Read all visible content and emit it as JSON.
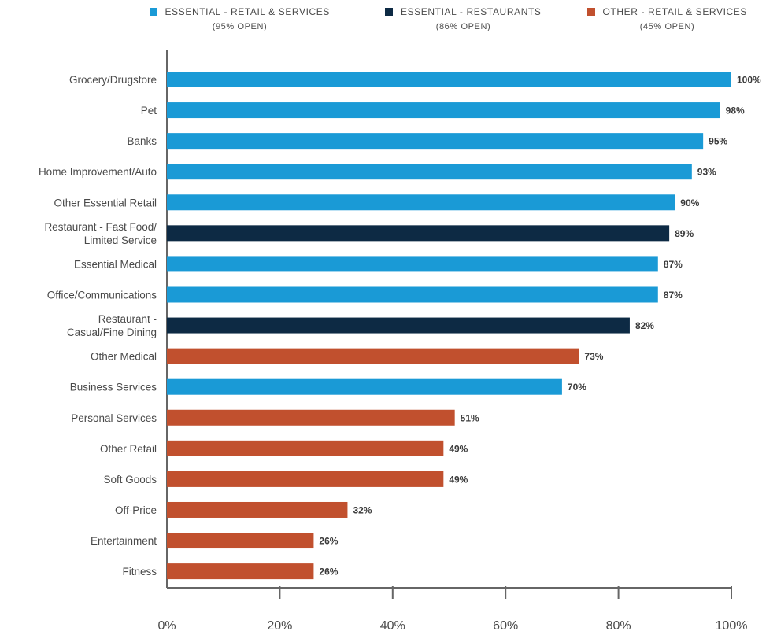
{
  "chart_data": {
    "type": "bar",
    "orientation": "horizontal",
    "title": "",
    "xlabel": "",
    "ylabel": "",
    "xlim": [
      0,
      100
    ],
    "x_ticks": [
      "0%",
      "20%",
      "40%",
      "60%",
      "80%",
      "100%"
    ],
    "grid": false,
    "legend_position": "top",
    "legend": [
      {
        "key": "essential_retail",
        "label": "ESSENTIAL - RETAIL & SERVICES",
        "sub": "(95% OPEN)",
        "color": "#1a9ad6"
      },
      {
        "key": "essential_restaurants",
        "label": "ESSENTIAL - RESTAURANTS",
        "sub": "(86% OPEN)",
        "color": "#0d2a44"
      },
      {
        "key": "other_retail",
        "label": "OTHER - RETAIL & SERVICES",
        "sub": "(45% OPEN)",
        "color": "#c1502e"
      }
    ],
    "bars": [
      {
        "label": [
          "Grocery/Drugstore"
        ],
        "value": 100,
        "value_label": "100%",
        "group": "essential_retail"
      },
      {
        "label": [
          "Pet"
        ],
        "value": 98,
        "value_label": "98%",
        "group": "essential_retail"
      },
      {
        "label": [
          "Banks"
        ],
        "value": 95,
        "value_label": "95%",
        "group": "essential_retail"
      },
      {
        "label": [
          "Home Improvement/Auto"
        ],
        "value": 93,
        "value_label": "93%",
        "group": "essential_retail"
      },
      {
        "label": [
          "Other Essential Retail"
        ],
        "value": 90,
        "value_label": "90%",
        "group": "essential_retail"
      },
      {
        "label": [
          "Restaurant - Fast Food/",
          "Limited Service"
        ],
        "value": 89,
        "value_label": "89%",
        "group": "essential_restaurants"
      },
      {
        "label": [
          "Essential Medical"
        ],
        "value": 87,
        "value_label": "87%",
        "group": "essential_retail"
      },
      {
        "label": [
          "Office/Communications"
        ],
        "value": 87,
        "value_label": "87%",
        "group": "essential_retail"
      },
      {
        "label": [
          "Restaurant -",
          "Casual/Fine Dining"
        ],
        "value": 82,
        "value_label": "82%",
        "group": "essential_restaurants"
      },
      {
        "label": [
          "Other Medical"
        ],
        "value": 73,
        "value_label": "73%",
        "group": "other_retail"
      },
      {
        "label": [
          "Business Services"
        ],
        "value": 70,
        "value_label": "70%",
        "group": "essential_retail"
      },
      {
        "label": [
          "Personal Services"
        ],
        "value": 51,
        "value_label": "51%",
        "group": "other_retail"
      },
      {
        "label": [
          "Other Retail"
        ],
        "value": 49,
        "value_label": "49%",
        "group": "other_retail"
      },
      {
        "label": [
          "Soft Goods"
        ],
        "value": 49,
        "value_label": "49%",
        "group": "other_retail"
      },
      {
        "label": [
          "Off-Price"
        ],
        "value": 32,
        "value_label": "32%",
        "group": "other_retail"
      },
      {
        "label": [
          "Entertainment"
        ],
        "value": 26,
        "value_label": "26%",
        "group": "other_retail"
      },
      {
        "label": [
          "Fitness"
        ],
        "value": 26,
        "value_label": "26%",
        "group": "other_retail"
      }
    ]
  }
}
